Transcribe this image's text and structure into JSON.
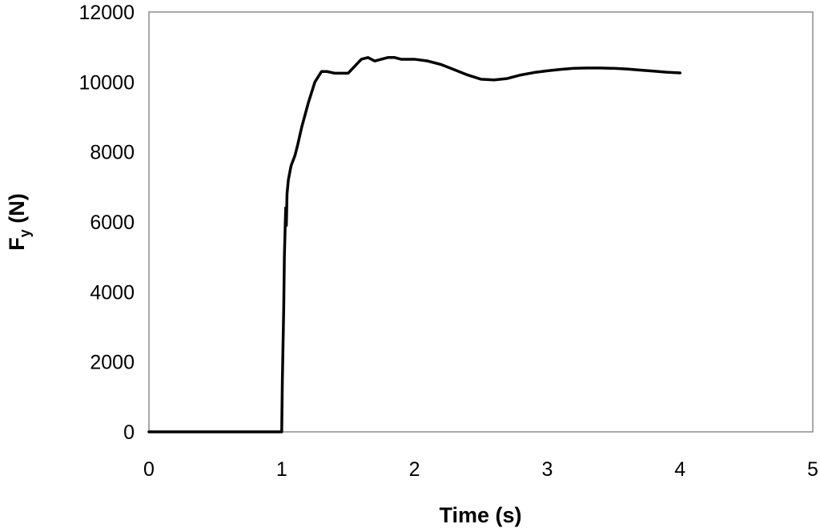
{
  "chart_data": {
    "type": "line",
    "xlabel": "Time (s)",
    "ylabel_main": "F",
    "ylabel_sub": "y",
    "ylabel_unit": " (N)",
    "xlim": [
      0,
      5
    ],
    "ylim": [
      0,
      12000
    ],
    "xticks": [
      "0",
      "1",
      "2",
      "3",
      "4",
      "5"
    ],
    "yticks": [
      "0",
      "2000",
      "4000",
      "6000",
      "8000",
      "10000",
      "12000"
    ],
    "grid": false,
    "legend": "none",
    "line_color": "#000000",
    "series": [
      {
        "x": [
          0,
          1.0,
          1.005,
          1.015,
          1.02,
          1.025,
          1.03,
          1.035,
          1.04,
          1.05,
          1.06,
          1.07,
          1.08,
          1.1,
          1.12,
          1.15,
          1.2,
          1.25,
          1.3,
          1.34,
          1.4,
          1.45,
          1.5,
          1.55,
          1.6,
          1.65,
          1.7,
          1.75,
          1.8,
          1.85,
          1.9,
          2.0,
          2.1,
          2.2,
          2.3,
          2.4,
          2.5,
          2.6,
          2.7,
          2.8,
          2.9,
          3.0,
          3.1,
          3.2,
          3.3,
          3.4,
          3.5,
          3.6,
          3.7,
          3.8,
          3.9,
          4.0
        ],
        "y": [
          0,
          0,
          1500,
          3500,
          5000,
          5700,
          6400,
          5900,
          6800,
          7200,
          7400,
          7600,
          7700,
          7900,
          8200,
          8700,
          9400,
          10000,
          10300,
          10300,
          10250,
          10250,
          10250,
          10450,
          10650,
          10700,
          10600,
          10650,
          10700,
          10700,
          10650,
          10650,
          10600,
          10500,
          10350,
          10200,
          10080,
          10060,
          10100,
          10200,
          10270,
          10320,
          10360,
          10390,
          10400,
          10400,
          10390,
          10370,
          10340,
          10310,
          10280,
          10260
        ]
      }
    ]
  }
}
